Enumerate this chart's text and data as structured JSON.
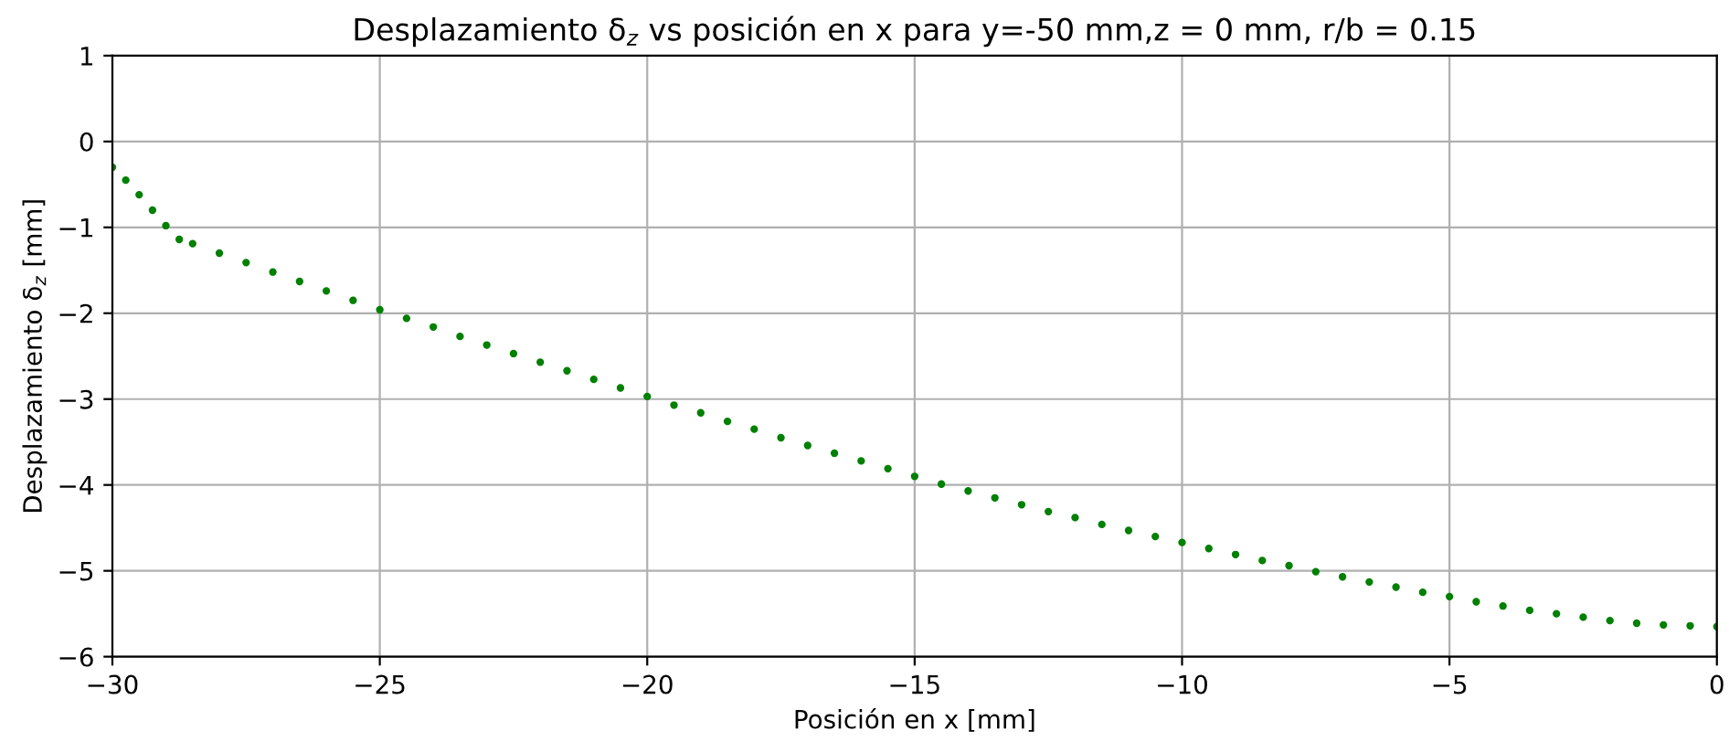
{
  "chart_data": {
    "type": "scatter",
    "title": "Desplazamiento δ$_{z}$ vs posición en x para y=-50 mm,z = 0 mm, r/b = 0.15",
    "xlabel": "Posición en x [mm]",
    "ylabel": "Desplazamiento δ$_{z}$ [mm]",
    "series": [
      {
        "color": "#008000",
        "x": [
          -30,
          -29.75,
          -29.5,
          -29.25,
          -29,
          -28.75,
          -28.5,
          -28,
          -27.5,
          -27,
          -26.5,
          -26,
          -25.5,
          -25,
          -24.5,
          -24,
          -23.5,
          -23,
          -22.5,
          -22,
          -21.5,
          -21,
          -20.5,
          -20,
          -19.5,
          -19,
          -18.5,
          -18,
          -17.5,
          -17,
          -16.5,
          -16,
          -15.5,
          -15,
          -14.5,
          -14,
          -13.5,
          -13,
          -12.5,
          -12,
          -11.5,
          -11,
          -10.5,
          -10,
          -9.5,
          -9,
          -8.5,
          -8,
          -7.5,
          -7,
          -6.5,
          -6,
          -5.5,
          -5,
          -4.5,
          -4,
          -3.5,
          -3,
          -2.5,
          -2,
          -1.5,
          -1,
          -0.5,
          0
        ],
        "values": [
          -0.3,
          -0.45,
          -0.62,
          -0.8,
          -0.98,
          -1.14,
          -1.19,
          -1.3,
          -1.41,
          -1.52,
          -1.63,
          -1.74,
          -1.85,
          -1.96,
          -2.06,
          -2.16,
          -2.27,
          -2.37,
          -2.47,
          -2.57,
          -2.67,
          -2.77,
          -2.87,
          -2.97,
          -3.07,
          -3.16,
          -3.26,
          -3.35,
          -3.45,
          -3.54,
          -3.63,
          -3.72,
          -3.81,
          -3.9,
          -3.99,
          -4.07,
          -4.15,
          -4.23,
          -4.31,
          -4.38,
          -4.46,
          -4.53,
          -4.6,
          -4.67,
          -4.74,
          -4.81,
          -4.88,
          -4.94,
          -5.01,
          -5.07,
          -5.13,
          -5.19,
          -5.25,
          -5.3,
          -5.36,
          -5.41,
          -5.46,
          -5.5,
          -5.54,
          -5.58,
          -5.61,
          -5.63,
          -5.64,
          -5.65
        ]
      }
    ],
    "xlim": [
      -30,
      0
    ],
    "ylim": [
      -6,
      1
    ],
    "xticks": [
      {
        "value": -30,
        "label": "−30"
      },
      {
        "value": -25,
        "label": "−25"
      },
      {
        "value": -20,
        "label": "−20"
      },
      {
        "value": -15,
        "label": "−15"
      },
      {
        "value": -10,
        "label": "−10"
      },
      {
        "value": -5,
        "label": "−5"
      },
      0
    ],
    "yticks": [
      {
        "value": -6,
        "label": "−6"
      },
      {
        "value": -5,
        "label": "−5"
      },
      {
        "value": -4,
        "label": "−4"
      },
      {
        "value": -3,
        "label": "−3"
      },
      {
        "value": -2,
        "label": "−2"
      },
      {
        "value": -1,
        "label": "−1"
      },
      0,
      1
    ],
    "grid": true,
    "marker": "circle"
  }
}
